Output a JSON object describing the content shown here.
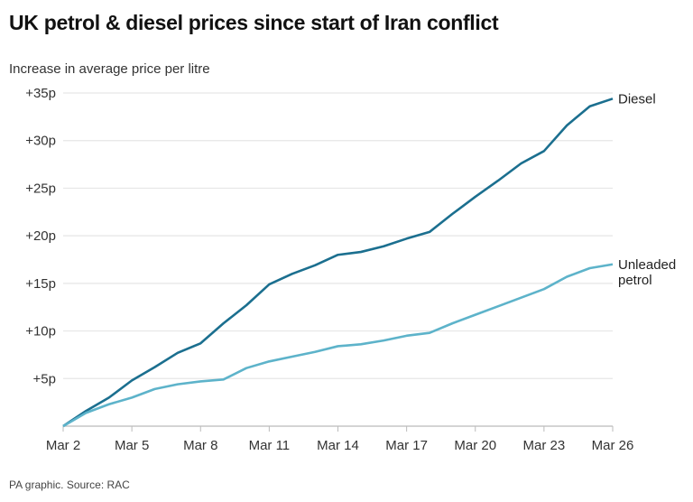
{
  "chart_data": {
    "type": "line",
    "title": "UK petrol & diesel prices since start of Iran conflict",
    "ylabel": "Increase in average price per litre",
    "xlabel": "",
    "source": "PA graphic. Source: RAC",
    "x": [
      "Mar 2",
      "Mar 3",
      "Mar 4",
      "Mar 5",
      "Mar 6",
      "Mar 7",
      "Mar 8",
      "Mar 9",
      "Mar 10",
      "Mar 11",
      "Mar 12",
      "Mar 13",
      "Mar 14",
      "Mar 15",
      "Mar 16",
      "Mar 17",
      "Mar 18",
      "Mar 19",
      "Mar 20",
      "Mar 21",
      "Mar 22",
      "Mar 23",
      "Mar 24",
      "Mar 25",
      "Mar 26"
    ],
    "x_ticks": [
      "Mar 2",
      "Mar 5",
      "Mar 8",
      "Mar 11",
      "Mar 14",
      "Mar 17",
      "Mar 20",
      "Mar 23",
      "Mar 26"
    ],
    "y_ticks": [
      5,
      10,
      15,
      20,
      25,
      30,
      35
    ],
    "y_tick_labels": [
      "+5p",
      "+10p",
      "+15p",
      "+20p",
      "+25p",
      "+30p",
      "+35p"
    ],
    "ylim": [
      0,
      35
    ],
    "grid": true,
    "series": [
      {
        "name": "Diesel",
        "label_lines": [
          "Diesel"
        ],
        "color": "#1b6f8f",
        "values": [
          0,
          1.6,
          3.0,
          4.8,
          6.2,
          7.7,
          8.7,
          10.8,
          12.7,
          14.9,
          16.0,
          16.9,
          18.0,
          18.3,
          18.9,
          19.7,
          20.4,
          22.3,
          24.1,
          25.8,
          27.6,
          28.9,
          31.6,
          33.6,
          34.4
        ]
      },
      {
        "name": "Unleaded petrol",
        "label_lines": [
          "Unleaded",
          "petrol"
        ],
        "color": "#5db3ca",
        "values": [
          0,
          1.4,
          2.3,
          3.0,
          3.9,
          4.4,
          4.7,
          4.9,
          6.1,
          6.8,
          7.3,
          7.8,
          8.4,
          8.6,
          9.0,
          9.5,
          9.8,
          10.8,
          11.7,
          12.6,
          13.5,
          14.4,
          15.7,
          16.6,
          17.0
        ]
      }
    ]
  }
}
